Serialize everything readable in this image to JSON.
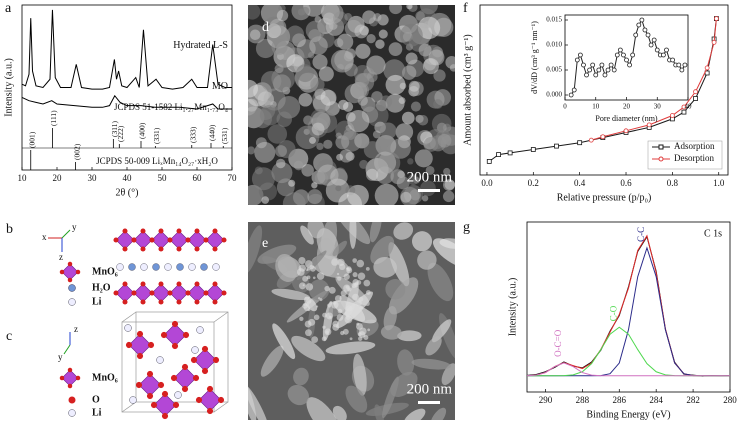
{
  "chart_data": [
    {
      "type": "line",
      "panel_label": "a",
      "xlabel": "2θ (°)",
      "ylabel": "Intensity (a.u.)",
      "xlim": [
        10,
        70
      ],
      "xticks": [
        10,
        20,
        30,
        40,
        50,
        60,
        70
      ],
      "ylim": [
        0,
        100
      ],
      "legend": "inline",
      "series": [
        {
          "name": "Hydrated L-S",
          "color": "#000000",
          "x": [
            10,
            11,
            12,
            12.5,
            13,
            14,
            16,
            18,
            18.7,
            19.5,
            21,
            24,
            25.5,
            27,
            30,
            33,
            35,
            36.4,
            37,
            37.6,
            38.5,
            40,
            42.5,
            43.5,
            44.7,
            46,
            48.3,
            50,
            53,
            56,
            58.5,
            60,
            63,
            64.5,
            66,
            68,
            70
          ],
          "values": [
            52,
            51,
            58,
            92,
            60,
            51,
            50,
            55,
            97,
            56,
            50,
            50,
            64,
            50,
            49,
            49,
            50,
            67,
            55,
            60,
            51,
            50,
            56,
            50,
            85,
            51,
            55,
            50,
            49,
            50,
            55,
            50,
            50,
            76,
            52,
            50,
            50
          ]
        },
        {
          "name": "MO",
          "color": "#000000",
          "x": [
            10,
            12,
            14,
            16,
            18.5,
            20,
            25,
            30,
            33,
            35,
            36.5,
            38,
            40,
            44,
            48,
            55,
            60,
            64.5,
            66,
            70
          ],
          "values": [
            44,
            42,
            41,
            40,
            42,
            40,
            39,
            38,
            38,
            39,
            45,
            41,
            39,
            39,
            38,
            38,
            37,
            40,
            37,
            37
          ]
        }
      ],
      "references": [
        {
          "name": "JCPDS 51-1582 Li₁.₂₇Mn₁.₇₃O₄",
          "color": "#000000",
          "positions": [
            18.7,
            36.1,
            37.8,
            44.0,
            48.1,
            58.5,
            64.0,
            67.5
          ],
          "intensities": [
            100,
            45,
            20,
            35,
            10,
            15,
            25,
            10
          ],
          "labels": [
            "(111)",
            "(311)",
            "(222)",
            "(400)",
            "(331)",
            "(333)",
            "(440)",
            "(531)"
          ]
        },
        {
          "name": "JCPDS 50-009 LiₓMn₁₄O₂₇·xH₂O",
          "color": "#000000",
          "positions": [
            12.5,
            25.3
          ],
          "intensities": [
            100,
            40
          ],
          "labels": [
            "(001)",
            "(002)"
          ]
        }
      ]
    },
    {
      "type": "line",
      "panel_label": "f",
      "xlabel": "Relative pressure (p/p₀)",
      "ylabel": "Amount absorbed (cm³ g⁻¹)",
      "xlim": [
        -0.03,
        1.04
      ],
      "xticks": [
        {
          "value": 0,
          "label": "0.0"
        },
        {
          "value": 0.2,
          "label": "0.2"
        },
        {
          "value": 0.4,
          "label": "0.4"
        },
        {
          "value": 0.6,
          "label": "0.6"
        },
        {
          "value": 0.8,
          "label": "0.8"
        },
        {
          "value": 1,
          "label": "1.0"
        }
      ],
      "ylim": [
        0,
        100
      ],
      "legend": "lower right",
      "series": [
        {
          "name": "Adsorption",
          "color": "#1a1a1a",
          "marker": "square",
          "x": [
            0.01,
            0.05,
            0.1,
            0.2,
            0.3,
            0.4,
            0.5,
            0.6,
            0.7,
            0.8,
            0.85,
            0.9,
            0.95,
            0.98,
            0.99
          ],
          "values": [
            8,
            12,
            13,
            15,
            17,
            19,
            22,
            25,
            28,
            33,
            37,
            45,
            60,
            80,
            92
          ]
        },
        {
          "name": "Desorption",
          "color": "#e03c3c",
          "marker": "circle",
          "x": [
            0.99,
            0.98,
            0.95,
            0.9,
            0.85,
            0.8,
            0.7,
            0.6,
            0.5,
            0.45
          ],
          "values": [
            92,
            78,
            63,
            49,
            40,
            35,
            29.5,
            26,
            22.5,
            20.5
          ]
        }
      ]
    },
    {
      "type": "line",
      "xlabel": "Pore diameter (nm)",
      "ylabel": "dV/dD (cm³ g⁻¹ nm⁻¹)",
      "xlim": [
        0,
        40
      ],
      "xticks": [
        0,
        10,
        20,
        30,
        40
      ],
      "ylim": [
        -0.001,
        0.016
      ],
      "yticks": [
        {
          "value": 0,
          "label": "0.000"
        },
        {
          "value": 0.005,
          "label": "0.005"
        },
        {
          "value": 0.01,
          "label": "0.010"
        },
        {
          "value": 0.015,
          "label": "0.015"
        }
      ],
      "series": [
        {
          "color": "#222222",
          "marker": "circle",
          "x": [
            2,
            3,
            4,
            5,
            6,
            7,
            8,
            9,
            10,
            11,
            12,
            13,
            14,
            15,
            16,
            17,
            18,
            19,
            20,
            21,
            22,
            23,
            24,
            25,
            26,
            27,
            28,
            29,
            30,
            31,
            32,
            33,
            34,
            35,
            36,
            37,
            38,
            39
          ],
          "values": [
            0,
            0.001,
            0.007,
            0.008,
            0.006,
            0.004,
            0.005,
            0.006,
            0.004,
            0.005,
            0.006,
            0.004,
            0.005,
            0.006,
            0.005,
            0.008,
            0.009,
            0.008,
            0.007,
            0.006,
            0.008,
            0.012,
            0.014,
            0.015,
            0.013,
            0.012,
            0.01,
            0.011,
            0.009,
            0.008,
            0.008,
            0.009,
            0.007,
            0.007,
            0.006,
            0.006,
            0.005,
            0.006
          ]
        }
      ]
    },
    {
      "type": "line",
      "panel_label": "g",
      "title": "C 1s",
      "xlabel": "Binding Energy (eV)",
      "ylabel": "Intensity (a.u.)",
      "xlim": [
        291,
        280
      ],
      "xticks": [
        290,
        288,
        286,
        284,
        282,
        280
      ],
      "ylim": [
        0,
        105
      ],
      "x": [
        291,
        290.5,
        290,
        289.5,
        289,
        288.5,
        288,
        287.5,
        287,
        286.5,
        286,
        285.5,
        285,
        284.5,
        284,
        283.5,
        283,
        282.5,
        282,
        281.5,
        281,
        280.5,
        280
      ],
      "series": [
        {
          "color": "#111111",
          "values": [
            10.3,
            10.8,
            12.5,
            15.2,
            18.6,
            16.0,
            14.9,
            18.5,
            25.8,
            37.6,
            47.2,
            65.0,
            86.8,
            95.9,
            74.5,
            38.6,
            18.4,
            11.0,
            10.4,
            9.8,
            10.2,
            9.9,
            10.1
          ]
        },
        {
          "color": "#e02828",
          "values": [
            10,
            10.4,
            12,
            15.7,
            18.1,
            16.3,
            14.5,
            17.9,
            26.3,
            37.0,
            47.9,
            64.2,
            87.4,
            96.5,
            73.7,
            39.1,
            18.0,
            11.3,
            10.1,
            10,
            10,
            10,
            10
          ]
        },
        {
          "color": "#2b2b8a",
          "label": "C-C",
          "values": [
            10,
            10,
            10,
            10,
            10,
            10,
            10,
            10,
            10.1,
            11.3,
            17.9,
            38.5,
            71.2,
            89,
            71.2,
            38.5,
            17.9,
            11.3,
            10.1,
            10,
            10,
            10,
            10
          ]
        },
        {
          "color": "#4fd84f",
          "label": "C-O",
          "values": [
            10,
            10,
            10,
            10,
            10.1,
            10.6,
            12.5,
            17.5,
            26.2,
            35.7,
            40,
            35.7,
            26.2,
            17.5,
            12.5,
            10.6,
            10.1,
            10,
            10,
            10,
            10,
            10,
            10
          ]
        },
        {
          "color": "#d070c0",
          "label": "O-C=O",
          "values": [
            10,
            10.4,
            12,
            15.7,
            18,
            15.7,
            12,
            10.4,
            10,
            10,
            10,
            10,
            10,
            10,
            10,
            10,
            10,
            10,
            10,
            10,
            10,
            10,
            10
          ]
        }
      ]
    }
  ],
  "panels": {
    "b": {
      "label": "b",
      "axes": [
        "x",
        "y",
        "z"
      ],
      "legend": [
        "MnO₆",
        "H₂O",
        "Li"
      ]
    },
    "c": {
      "label": "c",
      "axes": [
        "z",
        "y"
      ],
      "legend": [
        "MnO₆",
        "O",
        "Li"
      ]
    },
    "d": {
      "label": "d",
      "scale_bar": "200 nm"
    },
    "e": {
      "label": "e",
      "scale_bar": "200 nm"
    }
  }
}
